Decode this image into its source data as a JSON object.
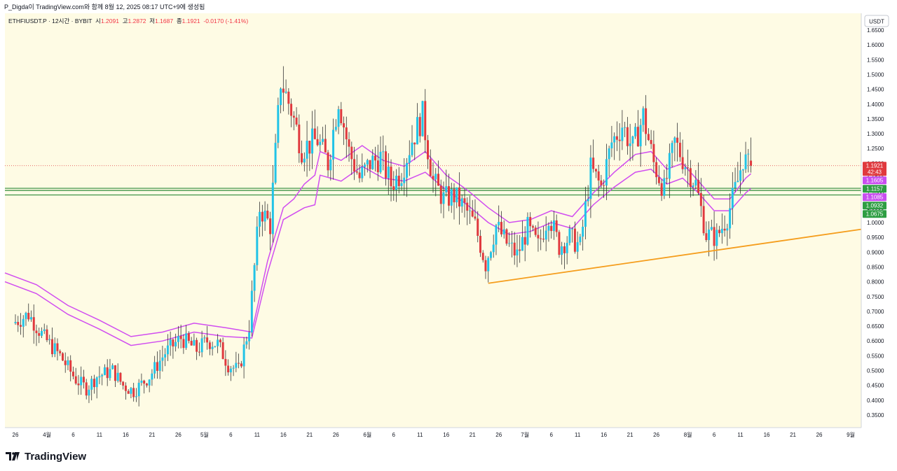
{
  "credit": "P_Digda이 TradingView.com와 함께 8월 12, 2025 08:17 UTC+9에 생성됨",
  "brand": "TradingView",
  "colors": {
    "plot_bg": "#fefbe4",
    "up": "#22c3e6",
    "down": "#e0393e",
    "wick": "#333333",
    "band": "#d14df0",
    "trend": "#f59d1c",
    "hline": "#2e8b3a",
    "price": "#e0393e",
    "badge_purple": "#c84df0",
    "badge_green": "#2e9e43"
  },
  "chart_data": {
    "type": "candlestick",
    "legend": {
      "symbol": "ETHFIUSDT.P · 12시간 · BYBIT",
      "o_label": "시",
      "o": "1.2091",
      "h_label": "고",
      "h": "1.2872",
      "l_label": "저",
      "l": "1.1687",
      "c_label": "종",
      "c": "1.1921",
      "change": "-0.0170 (-1.41%)"
    },
    "currency": "USDT",
    "ylim": [
      0.3,
      1.7
    ],
    "y_ticks": [
      "0.3500",
      "0.4000",
      "0.4500",
      "0.5000",
      "0.5500",
      "0.6000",
      "0.6500",
      "0.7000",
      "0.7500",
      "0.8000",
      "0.8500",
      "0.9000",
      "0.9500",
      "1.0000",
      "1.0500",
      "1.1000",
      "1.1500",
      "1.2000",
      "1.2500",
      "1.3000",
      "1.3500",
      "1.4000",
      "1.4500",
      "1.5000",
      "1.5500",
      "1.6000",
      "1.6500"
    ],
    "x_ticks": [
      {
        "day": 0,
        "label": "26"
      },
      {
        "day": 6,
        "label": "4월"
      },
      {
        "day": 11,
        "label": "6"
      },
      {
        "day": 16,
        "label": "11"
      },
      {
        "day": 21,
        "label": "16"
      },
      {
        "day": 26,
        "label": "21"
      },
      {
        "day": 31,
        "label": "26"
      },
      {
        "day": 36,
        "label": "5월"
      },
      {
        "day": 41,
        "label": "6"
      },
      {
        "day": 46,
        "label": "11"
      },
      {
        "day": 51,
        "label": "16"
      },
      {
        "day": 56,
        "label": "21"
      },
      {
        "day": 61,
        "label": "26"
      },
      {
        "day": 67,
        "label": "6월"
      },
      {
        "day": 72,
        "label": "6"
      },
      {
        "day": 77,
        "label": "11"
      },
      {
        "day": 82,
        "label": "16"
      },
      {
        "day": 87,
        "label": "21"
      },
      {
        "day": 92,
        "label": "26"
      },
      {
        "day": 97,
        "label": "7월"
      },
      {
        "day": 102,
        "label": "6"
      },
      {
        "day": 107,
        "label": "11"
      },
      {
        "day": 112,
        "label": "16"
      },
      {
        "day": 117,
        "label": "21"
      },
      {
        "day": 122,
        "label": "26"
      },
      {
        "day": 128,
        "label": "8월"
      },
      {
        "day": 133,
        "label": "6"
      },
      {
        "day": 138,
        "label": "11"
      },
      {
        "day": 143,
        "label": "16"
      },
      {
        "day": 148,
        "label": "21"
      },
      {
        "day": 153,
        "label": "26"
      },
      {
        "day": 159,
        "label": "9월"
      }
    ],
    "x_range_days": [
      -2,
      161
    ],
    "price_path": [
      [
        0,
        0.66
      ],
      [
        3,
        0.69
      ],
      [
        6,
        0.61
      ],
      [
        9,
        0.55
      ],
      [
        12,
        0.47
      ],
      [
        14,
        0.44
      ],
      [
        16,
        0.48
      ],
      [
        19,
        0.5
      ],
      [
        21,
        0.45
      ],
      [
        23,
        0.43
      ],
      [
        26,
        0.48
      ],
      [
        29,
        0.56
      ],
      [
        32,
        0.61
      ],
      [
        35,
        0.57
      ],
      [
        37,
        0.6
      ],
      [
        39,
        0.59
      ],
      [
        41,
        0.52
      ],
      [
        43,
        0.5
      ],
      [
        45,
        0.65
      ],
      [
        47,
        1.05
      ],
      [
        49,
        0.99
      ],
      [
        51,
        1.48
      ],
      [
        53,
        1.38
      ],
      [
        55,
        1.25
      ],
      [
        58,
        1.28
      ],
      [
        60,
        1.2
      ],
      [
        62,
        1.42
      ],
      [
        64,
        1.24
      ],
      [
        66,
        1.15
      ],
      [
        68,
        1.2
      ],
      [
        70,
        1.22
      ],
      [
        72,
        1.13
      ],
      [
        74,
        1.17
      ],
      [
        76,
        1.28
      ],
      [
        78,
        1.36
      ],
      [
        80,
        1.14
      ],
      [
        82,
        1.08
      ],
      [
        84,
        1.09
      ],
      [
        86,
        1.05
      ],
      [
        88,
        0.99
      ],
      [
        90,
        0.86
      ],
      [
        92,
        0.99
      ],
      [
        94,
        0.93
      ],
      [
        96,
        0.89
      ],
      [
        98,
        0.98
      ],
      [
        100,
        0.92
      ],
      [
        102,
        1.03
      ],
      [
        104,
        0.92
      ],
      [
        106,
        0.95
      ],
      [
        108,
        0.92
      ],
      [
        110,
        1.18
      ],
      [
        112,
        1.12
      ],
      [
        114,
        1.27
      ],
      [
        116,
        1.33
      ],
      [
        118,
        1.25
      ],
      [
        120,
        1.36
      ],
      [
        122,
        1.2
      ],
      [
        124,
        1.11
      ],
      [
        126,
        1.27
      ],
      [
        128,
        1.2
      ],
      [
        130,
        1.13
      ],
      [
        132,
        0.96
      ],
      [
        134,
        0.95
      ],
      [
        136,
        1.02
      ],
      [
        138,
        1.14
      ],
      [
        139,
        1.22
      ],
      [
        140,
        1.19
      ]
    ],
    "upper_band": [
      [
        -2,
        0.83
      ],
      [
        4,
        0.79
      ],
      [
        10,
        0.72
      ],
      [
        16,
        0.67
      ],
      [
        22,
        0.615
      ],
      [
        28,
        0.63
      ],
      [
        34,
        0.66
      ],
      [
        40,
        0.645
      ],
      [
        45,
        0.63
      ],
      [
        48,
        0.87
      ],
      [
        51,
        1.05
      ],
      [
        53,
        1.08
      ],
      [
        55,
        1.13
      ],
      [
        57,
        1.16
      ],
      [
        58,
        1.24
      ],
      [
        62,
        1.21
      ],
      [
        66,
        1.26
      ],
      [
        70,
        1.21
      ],
      [
        74,
        1.19
      ],
      [
        78,
        1.24
      ],
      [
        82,
        1.16
      ],
      [
        86,
        1.11
      ],
      [
        90,
        1.05
      ],
      [
        94,
        1.0
      ],
      [
        98,
        1.01
      ],
      [
        102,
        1.04
      ],
      [
        106,
        1.02
      ],
      [
        110,
        1.1
      ],
      [
        114,
        1.17
      ],
      [
        118,
        1.23
      ],
      [
        121,
        1.24
      ],
      [
        124,
        1.18
      ],
      [
        127,
        1.2
      ],
      [
        130,
        1.14
      ],
      [
        133,
        1.08
      ],
      [
        136,
        1.08
      ],
      [
        139,
        1.15
      ],
      [
        140,
        1.165
      ]
    ],
    "lower_band": [
      [
        -2,
        0.8
      ],
      [
        4,
        0.76
      ],
      [
        10,
        0.69
      ],
      [
        16,
        0.64
      ],
      [
        22,
        0.585
      ],
      [
        28,
        0.6
      ],
      [
        34,
        0.63
      ],
      [
        40,
        0.615
      ],
      [
        45,
        0.61
      ],
      [
        48,
        0.83
      ],
      [
        51,
        1.01
      ],
      [
        53,
        1.03
      ],
      [
        55,
        1.05
      ],
      [
        57,
        1.06
      ],
      [
        58,
        1.16
      ],
      [
        62,
        1.14
      ],
      [
        66,
        1.19
      ],
      [
        70,
        1.15
      ],
      [
        74,
        1.14
      ],
      [
        78,
        1.17
      ],
      [
        82,
        1.11
      ],
      [
        86,
        1.06
      ],
      [
        90,
        1.0
      ],
      [
        94,
        0.96
      ],
      [
        98,
        0.97
      ],
      [
        102,
        1.0
      ],
      [
        106,
        0.98
      ],
      [
        110,
        1.06
      ],
      [
        114,
        1.12
      ],
      [
        118,
        1.17
      ],
      [
        121,
        1.18
      ],
      [
        124,
        1.13
      ],
      [
        127,
        1.15
      ],
      [
        130,
        1.1
      ],
      [
        133,
        1.04
      ],
      [
        136,
        1.04
      ],
      [
        139,
        1.1
      ],
      [
        140,
        1.115
      ]
    ],
    "trendline": [
      [
        90,
        0.795
      ],
      [
        164,
        0.985
      ]
    ],
    "horizontal_levels": [
      1.1157,
      1.1085,
      1.0932
    ],
    "current_price_line": 1.1921,
    "price_labels": [
      {
        "price": 1.1921,
        "text": "1.1921",
        "sub": "42:43",
        "color": "price"
      },
      {
        "price": 1.1605,
        "text": "1.1605",
        "color": "badge_purple"
      },
      {
        "price": 1.1157,
        "text": "1.1157",
        "color": "badge_green"
      },
      {
        "price": 1.1085,
        "text": "1.1085",
        "color": "badge_purple"
      },
      {
        "price": 1.0932,
        "text": "1.0932",
        "color": "badge_green"
      },
      {
        "price": 1.0675,
        "text": "1.0675",
        "color": "badge_green"
      }
    ]
  }
}
